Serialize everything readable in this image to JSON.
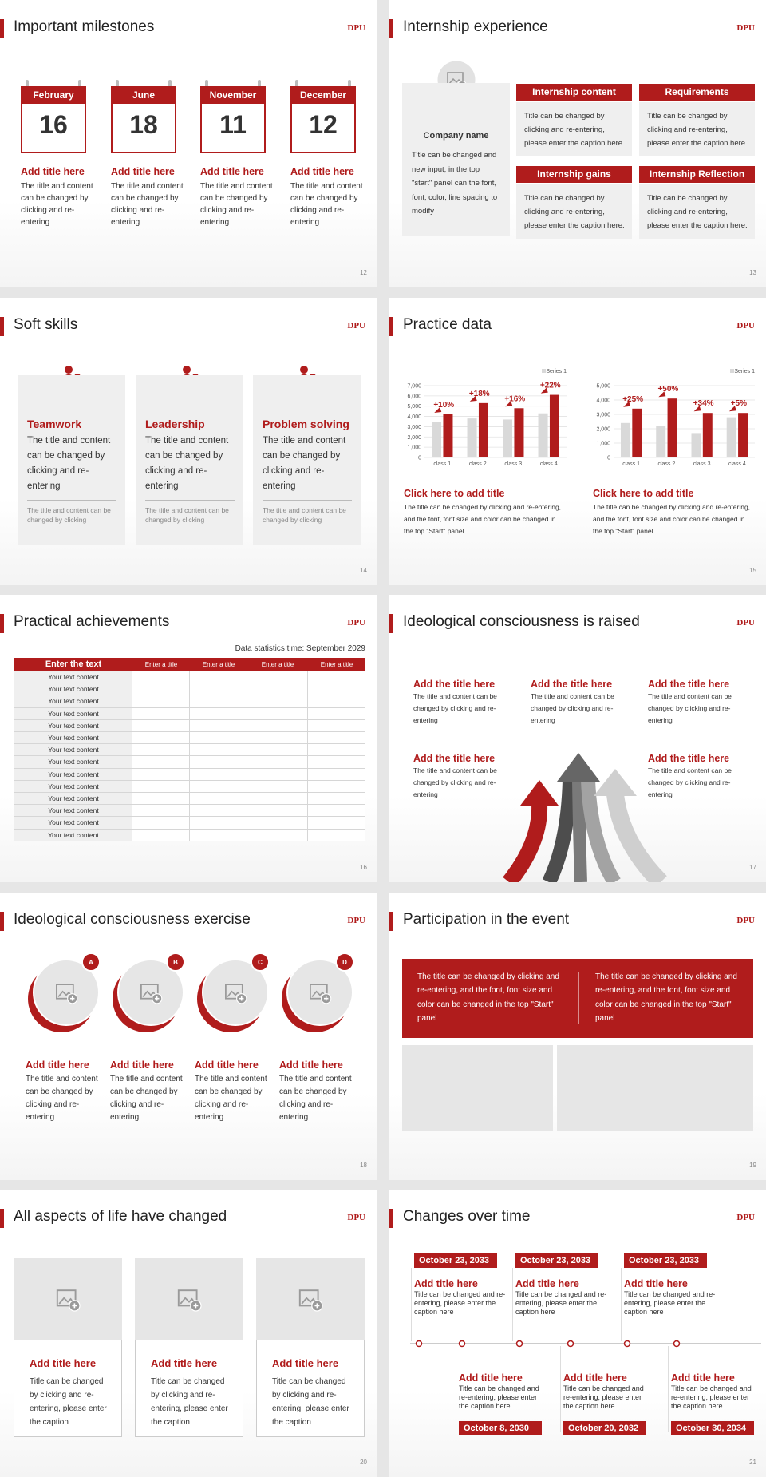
{
  "slides": [
    {
      "title": "Important milestones",
      "brand": "DPU",
      "page": "12",
      "items": [
        {
          "month": "February",
          "day": "16",
          "title": "Add title here",
          "text": "The title and content can be changed by clicking and re-entering"
        },
        {
          "month": "June",
          "day": "18",
          "title": "Add title here",
          "text": "The title and content can be changed by clicking and re-entering"
        },
        {
          "month": "November",
          "day": "11",
          "title": "Add title here",
          "text": "The title and content can be changed by clicking and re-entering"
        },
        {
          "month": "December",
          "day": "12",
          "title": "Add title here",
          "text": "The title and content can be changed by clicking and re-entering"
        }
      ]
    },
    {
      "title": "Internship experience",
      "brand": "DPU",
      "page": "13",
      "company": {
        "name": "Company name",
        "text": "Title can be changed and new input, in the top \"start\" panel can the font, font, color, line spacing to modify"
      },
      "boxes": [
        {
          "heading": "Internship content",
          "text": "Title can be changed by clicking and re-entering, please enter the caption here."
        },
        {
          "heading": "Requirements",
          "text": "Title can be changed by clicking and re-entering, please enter the caption here."
        },
        {
          "heading": "Internship gains",
          "text": "Title can be changed by clicking and re-entering, please enter the caption here."
        },
        {
          "heading": "Internship Reflection",
          "text": "Title can be changed by clicking and re-entering, please enter the caption here."
        }
      ]
    },
    {
      "title": "Soft skills",
      "brand": "DPU",
      "page": "14",
      "cards": [
        {
          "title": "Teamwork",
          "text": "The title and content can be changed by clicking and re-entering",
          "note": "The title and content can be changed by clicking"
        },
        {
          "title": "Leadership",
          "text": "The title and content can be changed by clicking and re-entering",
          "note": "The title and content can be changed by clicking"
        },
        {
          "title": "Problem solving",
          "text": "The title and content can be changed by clicking and re-entering",
          "note": "The title and content can be changed by clicking"
        }
      ]
    },
    {
      "title": "Practice data",
      "brand": "DPU",
      "page": "15",
      "captions": [
        {
          "title": "Click here to add title",
          "text": "The title can be changed by clicking and re-entering, and the font, font size and color can be changed in the top \"Start\" panel"
        },
        {
          "title": "Click here to add title",
          "text": "The title can be changed by clicking and re-entering, and the font, font size and color can be changed in the top \"Start\" panel"
        }
      ]
    },
    {
      "title": "Practical achievements",
      "brand": "DPU",
      "page": "16",
      "note": "Data statistics time: September 2029",
      "table": {
        "header": [
          "Enter the text",
          "Enter a title",
          "Enter a title",
          "Enter a title",
          "Enter a title"
        ],
        "rows": [
          "Your text content",
          "Your text content",
          "Your text content",
          "Your text content",
          "Your text content",
          "Your text content",
          "Your text content",
          "Your text content",
          "Your text content",
          "Your text content",
          "Your text content",
          "Your text content",
          "Your text content",
          "Your text content"
        ]
      }
    },
    {
      "title": "Ideological consciousness is raised",
      "brand": "DPU",
      "page": "17",
      "items": [
        {
          "title": "Add the title here",
          "text": "The title and content can be changed by clicking and re-entering"
        },
        {
          "title": "Add the title here",
          "text": "The title and content can be changed by clicking and re-entering"
        },
        {
          "title": "Add the title here",
          "text": "The title and content can be changed by clicking and re-entering"
        },
        {
          "title": "Add the title here",
          "text": "The title and content can be changed by clicking and re-entering"
        },
        {
          "title": "Add the title here",
          "text": "The title and content can be changed by clicking and re-entering"
        }
      ]
    },
    {
      "title": "Ideological consciousness exercise",
      "brand": "DPU",
      "page": "18",
      "items": [
        {
          "letter": "A",
          "title": "Add title here",
          "text": "The title and content can be changed by clicking and re-entering"
        },
        {
          "letter": "B",
          "title": "Add title here",
          "text": "The title and content can be changed by clicking and re-entering"
        },
        {
          "letter": "C",
          "title": "Add title here",
          "text": "The title and content can be changed by clicking and re-entering"
        },
        {
          "letter": "D",
          "title": "Add title here",
          "text": "The title and content can be changed by clicking and re-entering"
        }
      ]
    },
    {
      "title": "Participation in the event",
      "brand": "DPU",
      "page": "19",
      "texts": [
        "The title can be changed by clicking and re-entering, and the font, font size and color can be changed in the top \"Start\" panel",
        "The title can be changed by clicking and re-entering, and the font, font size and color can be changed in the top \"Start\" panel"
      ]
    },
    {
      "title": "All aspects of life have changed",
      "brand": "DPU",
      "page": "20",
      "cards": [
        {
          "title": "Add title here",
          "text": "Title can be changed by clicking and re-entering, please enter the caption"
        },
        {
          "title": "Add title here",
          "text": "Title can be changed by clicking and re-entering, please enter the caption"
        },
        {
          "title": "Add title here",
          "text": "Title can be changed by clicking and re-entering, please enter the caption"
        }
      ]
    },
    {
      "title": "Changes over time",
      "brand": "DPU",
      "page": "21",
      "top": [
        {
          "date": "October 23, 2033",
          "title": "Add title here",
          "text": "Title can be changed and re-entering, please enter the caption here"
        },
        {
          "date": "October 23, 2033",
          "title": "Add title here",
          "text": "Title can be changed and re-entering, please enter the caption here"
        },
        {
          "date": "October 23, 2033",
          "title": "Add title here",
          "text": "Title can be changed and re-entering, please enter the caption here"
        }
      ],
      "bottom": [
        {
          "date": "October 8, 2030",
          "title": "Add title here",
          "text": "Title can be changed and re-entering, please enter the caption here"
        },
        {
          "date": "October 20, 2032",
          "title": "Add title here",
          "text": "Title can be changed and re-entering, please enter the caption here"
        },
        {
          "date": "October 30, 2034",
          "title": "Add title here",
          "text": "Title can be changed and re-entering, please enter the caption here"
        }
      ]
    }
  ],
  "chart_data": [
    {
      "type": "bar",
      "categories": [
        "class 1",
        "class 2",
        "class 3",
        "class 4"
      ],
      "series": [
        {
          "name": "Series 1",
          "color": "#d9d9d9",
          "values": [
            3500,
            3800,
            3700,
            4300
          ]
        },
        {
          "color": "#b01c1c",
          "values": [
            4200,
            5300,
            4800,
            6100
          ]
        }
      ],
      "annotations": [
        "+10%",
        "+18%",
        "+16%",
        "+22%"
      ],
      "ylim": [
        0,
        7000
      ],
      "yticks": [
        0,
        {
          "value": 1000,
          "label": "1,000"
        },
        {
          "value": 2000,
          "label": "2,000"
        },
        {
          "value": 3000,
          "label": "3,000"
        },
        {
          "value": 4000,
          "label": "4,000"
        },
        {
          "value": 5000,
          "label": "5,000"
        },
        {
          "value": 6000,
          "label": "6,000"
        },
        {
          "value": 7000,
          "label": "7,000"
        }
      ],
      "grid": true,
      "legend": "top-right"
    },
    {
      "type": "bar",
      "categories": [
        "class 1",
        "class 2",
        "class 3",
        "class 4"
      ],
      "series": [
        {
          "name": "Series 1",
          "color": "#d9d9d9",
          "values": [
            2400,
            2200,
            1700,
            2800
          ]
        },
        {
          "color": "#b01c1c",
          "values": [
            3400,
            4100,
            3100,
            3100
          ]
        }
      ],
      "annotations": [
        "+25%",
        "+50%",
        "+34%",
        "+5%"
      ],
      "ylim": [
        0,
        5000
      ],
      "yticks": [
        0,
        {
          "value": 1000,
          "label": "1,000"
        },
        {
          "value": 2000,
          "label": "2,000"
        },
        {
          "value": 3000,
          "label": "3,000"
        },
        {
          "value": 4000,
          "label": "4,000"
        },
        {
          "value": 5000,
          "label": "5,000"
        }
      ],
      "grid": true,
      "legend": "top-right"
    }
  ]
}
